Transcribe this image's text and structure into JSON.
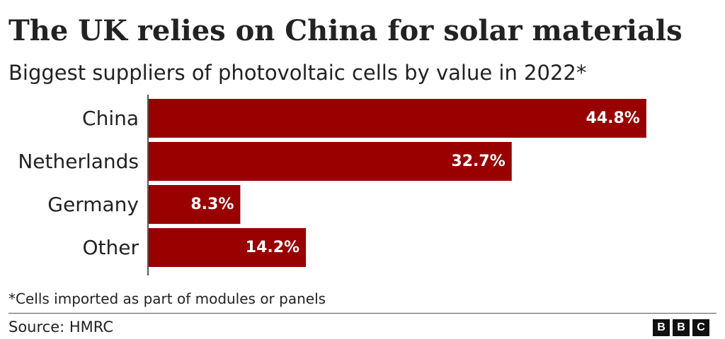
{
  "header": {
    "title": "The UK relies on China for solar materials",
    "subtitle": "Biggest suppliers of photovoltaic cells by value in 2022*"
  },
  "footer": {
    "footnote": "*Cells imported as part of modules or panels",
    "source": "Source: HMRC",
    "logo_letters": [
      "B",
      "B",
      "C"
    ]
  },
  "colors": {
    "bar": "#990000",
    "bar_label": "#ffffff",
    "axis": "#555555",
    "text": "#222222"
  },
  "chart_data": {
    "type": "bar",
    "orientation": "horizontal",
    "title": "The UK relies on China for solar materials",
    "subtitle": "Biggest suppliers of photovoltaic cells by value in 2022*",
    "categories": [
      "China",
      "Netherlands",
      "Germany",
      "Other"
    ],
    "values": [
      44.8,
      32.7,
      8.3,
      14.2
    ],
    "value_labels": [
      "44.8%",
      "32.7%",
      "8.3%",
      "14.2%"
    ],
    "unit": "%",
    "xlim": [
      0,
      45
    ],
    "grid": false,
    "legend": "none"
  }
}
